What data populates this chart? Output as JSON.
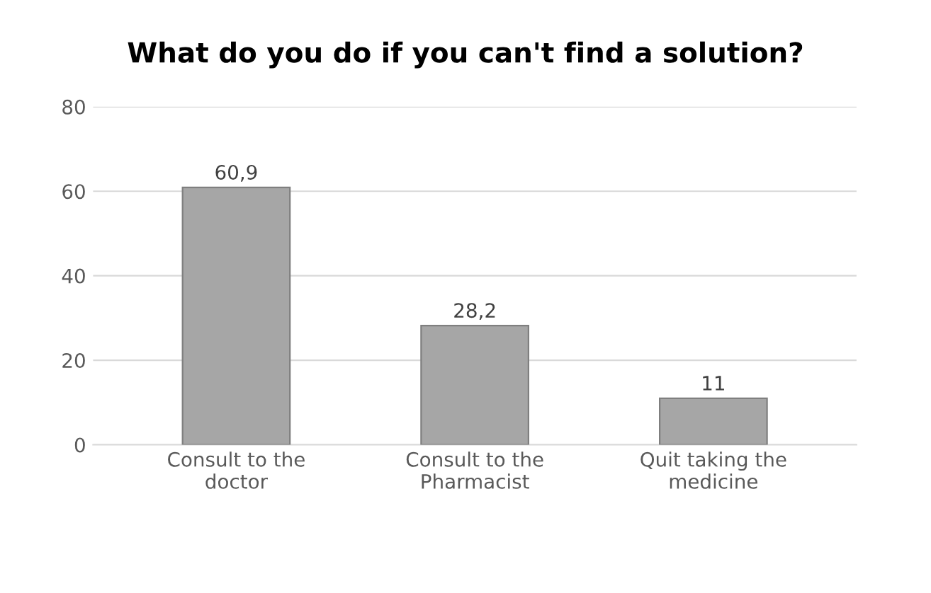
{
  "chart_data": {
    "type": "bar",
    "title": "What do you do if you can't find a solution?",
    "categories": [
      "Consult to the\ndoctor",
      "Consult to the\nPharmacist",
      "Quit taking the\nmedicine"
    ],
    "values": [
      60.9,
      28.2,
      11
    ],
    "value_labels": [
      "60,9",
      "28,2",
      "11"
    ],
    "color": "#a6a6a6",
    "ylim": [
      0,
      80
    ],
    "yticks": [
      0,
      20,
      40,
      60,
      80
    ],
    "grid": "y"
  }
}
